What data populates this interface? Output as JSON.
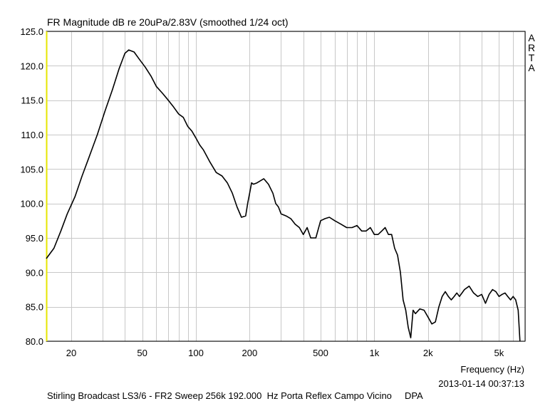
{
  "chart_data": {
    "type": "line",
    "title": "FR Magnitude dB re 20uPa/2.83V (smoothed 1/24 oct)",
    "xlabel": "Frequency (Hz)",
    "ylabel": "",
    "watermark": "ARTA",
    "timestamp": "2013-01-14  00:37:13",
    "caption": "Stirling Broadcast LS3/6 - FR2 Sweep 256k 192.000  Hz Porta Reflex Campo Vicino     DPA",
    "xscale": "log",
    "xlim": [
      14.5,
      7000
    ],
    "ylim": [
      80,
      125
    ],
    "grid": true,
    "line_color": "#000000",
    "grid_color": "#c8c8c8",
    "left_edge_color": "#e6e600",
    "yticks": [
      {
        "value": 80,
        "label": "80.0"
      },
      {
        "value": 85,
        "label": "85.0"
      },
      {
        "value": 90,
        "label": "90.0"
      },
      {
        "value": 95,
        "label": "95.0"
      },
      {
        "value": 100,
        "label": "100.0"
      },
      {
        "value": 105,
        "label": "105.0"
      },
      {
        "value": 110,
        "label": "110.0"
      },
      {
        "value": 115,
        "label": "115.0"
      },
      {
        "value": 120,
        "label": "120.0"
      },
      {
        "value": 125,
        "label": "125.0"
      }
    ],
    "xticks": [
      {
        "value": 20,
        "label": "20"
      },
      {
        "value": 50,
        "label": "50"
      },
      {
        "value": 100,
        "label": "100"
      },
      {
        "value": 200,
        "label": "200"
      },
      {
        "value": 500,
        "label": "500"
      },
      {
        "value": 1000,
        "label": "1k"
      },
      {
        "value": 2000,
        "label": "2k"
      },
      {
        "value": 5000,
        "label": "5k"
      }
    ],
    "series": [
      {
        "x": [
          14.5,
          16,
          17.5,
          19,
          21,
          23,
          25,
          28,
          31,
          34,
          37,
          40,
          42,
          45,
          48,
          52,
          56,
          60,
          65,
          70,
          75,
          80,
          85,
          90,
          95,
          100,
          105,
          110,
          120,
          130,
          140,
          150,
          160,
          170,
          180,
          190,
          195,
          200,
          205,
          210,
          220,
          240,
          255,
          270,
          280,
          290,
          300,
          320,
          340,
          360,
          380,
          400,
          420,
          440,
          470,
          500,
          530,
          560,
          600,
          650,
          700,
          750,
          800,
          850,
          900,
          950,
          1000,
          1050,
          1100,
          1150,
          1200,
          1250,
          1300,
          1350,
          1400,
          1450,
          1500,
          1550,
          1600,
          1650,
          1700,
          1800,
          1900,
          2000,
          2100,
          2200,
          2300,
          2400,
          2500,
          2600,
          2700,
          2800,
          2900,
          3000,
          3200,
          3400,
          3600,
          3800,
          4000,
          4200,
          4400,
          4600,
          4800,
          5000,
          5200,
          5400,
          5600,
          5800,
          6000,
          6200,
          6400,
          6550
        ],
        "y": [
          92.0,
          93.5,
          96.0,
          98.5,
          101.0,
          104.0,
          106.5,
          110.0,
          113.5,
          116.5,
          119.5,
          121.8,
          122.3,
          122.0,
          121.0,
          119.8,
          118.5,
          117.0,
          116.0,
          115.0,
          114.0,
          113.0,
          112.5,
          111.2,
          110.5,
          109.5,
          108.5,
          107.8,
          106.0,
          104.5,
          104.0,
          103.0,
          101.5,
          99.5,
          98.0,
          98.2,
          100.0,
          101.5,
          103.0,
          102.8,
          103.0,
          103.6,
          102.8,
          101.5,
          100.0,
          99.5,
          98.5,
          98.2,
          97.8,
          97.0,
          96.5,
          95.5,
          96.5,
          95.0,
          95.0,
          97.5,
          97.8,
          98.0,
          97.5,
          97.0,
          96.5,
          96.5,
          96.8,
          96.0,
          96.0,
          96.5,
          95.5,
          95.5,
          96.0,
          96.5,
          95.5,
          95.5,
          93.5,
          92.5,
          90.0,
          86.0,
          84.5,
          82.0,
          80.5,
          84.5,
          84.0,
          84.7,
          84.5,
          83.5,
          82.5,
          82.8,
          85.0,
          86.5,
          87.2,
          86.5,
          86.0,
          86.5,
          87.0,
          86.5,
          87.5,
          88.0,
          87.0,
          86.5,
          86.8,
          85.5,
          86.8,
          87.5,
          87.2,
          86.5,
          86.8,
          87.0,
          86.5,
          86.0,
          86.5,
          86.0,
          84.5,
          80.0
        ]
      }
    ]
  }
}
